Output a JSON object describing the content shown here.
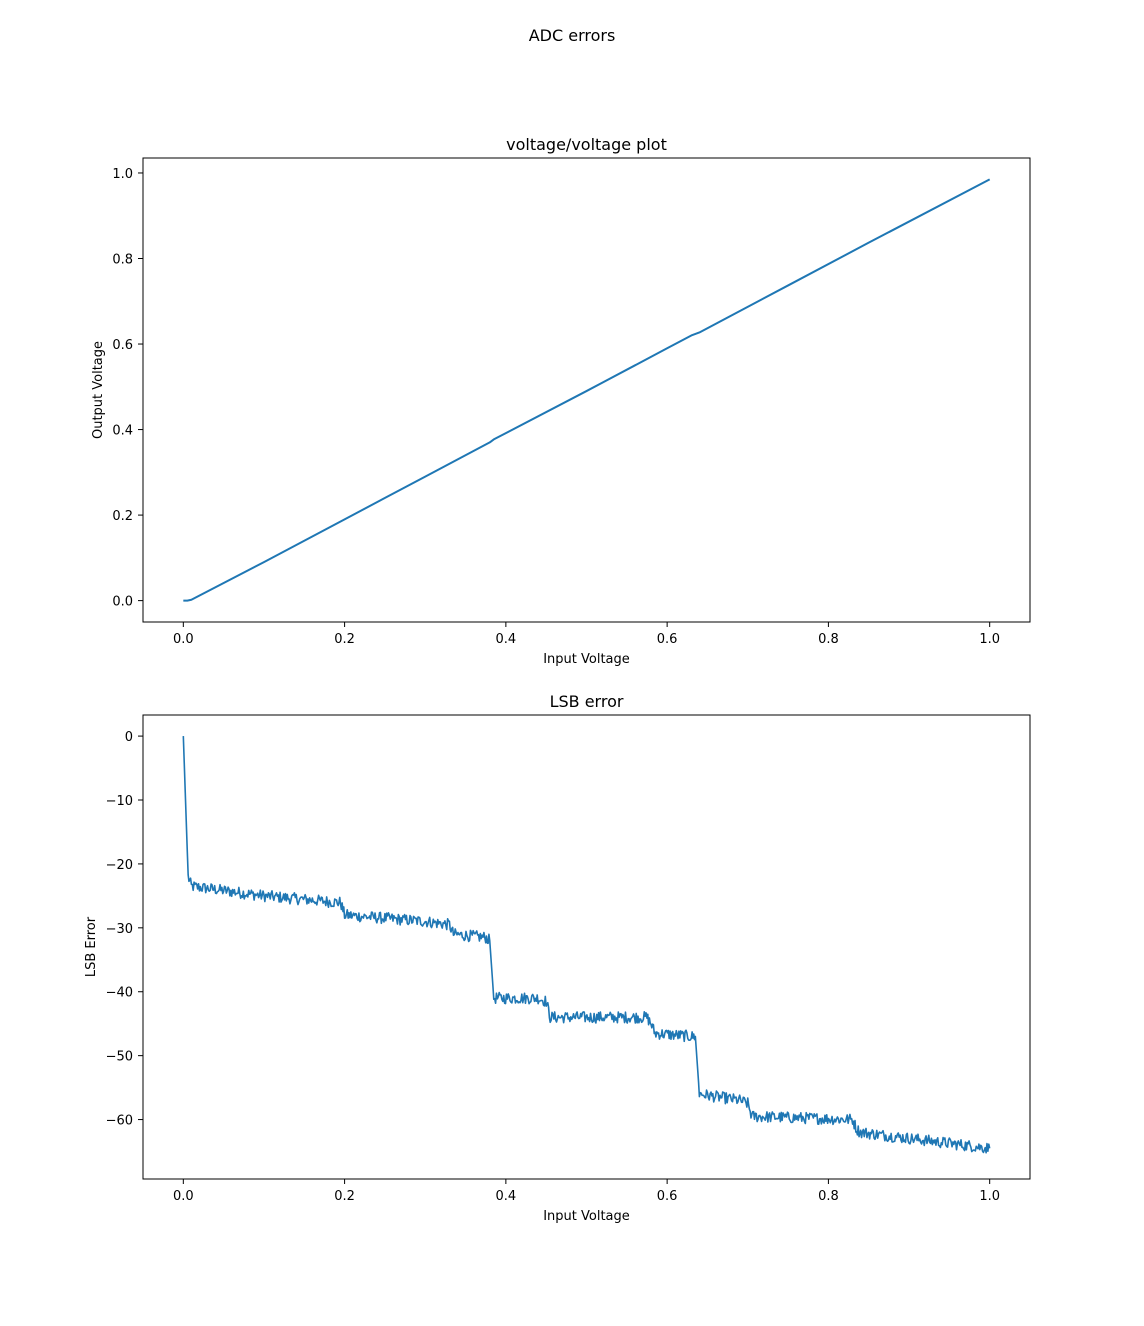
{
  "figure": {
    "suptitle": "ADC errors"
  },
  "chart_data": [
    {
      "type": "line",
      "title": "voltage/voltage plot",
      "xlabel": "Input Voltage",
      "ylabel": "Output Voltage",
      "xlim": [
        -0.05,
        1.05
      ],
      "ylim": [
        -0.05,
        1.035
      ],
      "xticks": [
        0.0,
        0.2,
        0.4,
        0.6,
        0.8,
        1.0
      ],
      "xtick_labels": [
        "0.0",
        "0.2",
        "0.4",
        "0.6",
        "0.8",
        "1.0"
      ],
      "yticks": [
        0.0,
        0.2,
        0.4,
        0.6,
        0.8,
        1.0
      ],
      "ytick_labels": [
        "0.0",
        "0.2",
        "0.4",
        "0.6",
        "0.8",
        "1.0"
      ],
      "grid": false,
      "series": [
        {
          "color": "#1f77b4",
          "x": [
            0.0,
            0.005,
            0.01,
            0.1,
            0.2,
            0.3,
            0.38,
            0.385,
            0.5,
            0.6,
            0.63,
            0.64,
            0.75,
            0.85,
            1.0
          ],
          "y": [
            0.0,
            0.0,
            0.002,
            0.09,
            0.19,
            0.29,
            0.37,
            0.377,
            0.49,
            0.59,
            0.62,
            0.627,
            0.737,
            0.837,
            0.985
          ]
        }
      ]
    },
    {
      "type": "line",
      "title": "LSB error",
      "xlabel": "Input Voltage",
      "ylabel": "LSB Error",
      "xlim": [
        -0.05,
        1.05
      ],
      "ylim": [
        -69.3,
        3.3
      ],
      "xticks": [
        0.0,
        0.2,
        0.4,
        0.6,
        0.8,
        1.0
      ],
      "xtick_labels": [
        "0.0",
        "0.2",
        "0.4",
        "0.6",
        "0.8",
        "1.0"
      ],
      "yticks": [
        0,
        -10,
        -20,
        -30,
        -40,
        -50,
        -60
      ],
      "ytick_labels": [
        "0",
        "−10",
        "−20",
        "−30",
        "−40",
        "−50",
        "−60"
      ],
      "grid": false,
      "series": [
        {
          "color": "#1f77b4",
          "noise_amplitude": 0.9,
          "x": [
            0.0,
            0.006,
            0.01,
            0.1,
            0.19,
            0.195,
            0.2,
            0.3,
            0.33,
            0.335,
            0.375,
            0.38,
            0.385,
            0.44,
            0.45,
            0.455,
            0.575,
            0.58,
            0.585,
            0.63,
            0.635,
            0.64,
            0.69,
            0.7,
            0.705,
            0.83,
            0.835,
            0.84,
            1.0
          ],
          "y": [
            0.0,
            -22.0,
            -23.5,
            -25.0,
            -26.0,
            -26.0,
            -28.0,
            -29.0,
            -29.5,
            -31.0,
            -31.5,
            -32.0,
            -41.0,
            -41.0,
            -41.5,
            -44.0,
            -44.0,
            -45.0,
            -46.5,
            -47.0,
            -47.0,
            -56.0,
            -57.0,
            -57.5,
            -59.5,
            -60.0,
            -61.5,
            -62.0,
            -64.5
          ]
        }
      ]
    }
  ]
}
